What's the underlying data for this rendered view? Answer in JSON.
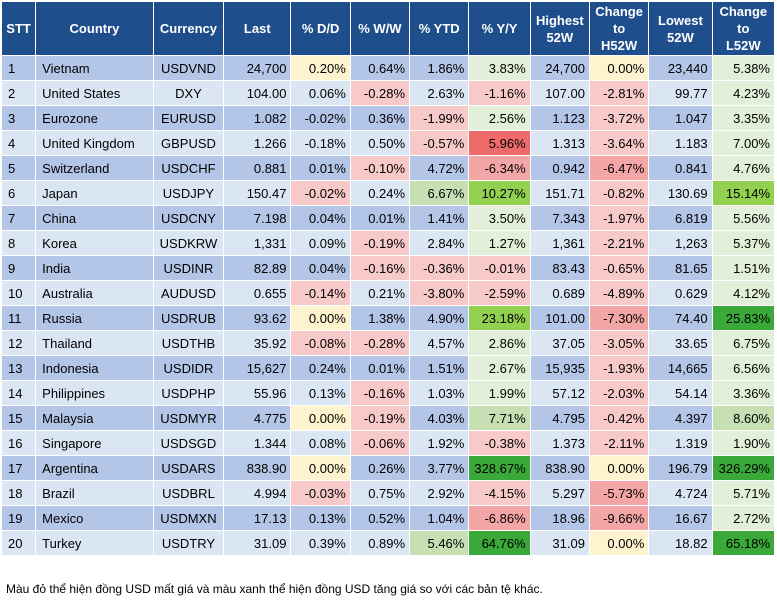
{
  "headers": {
    "stt": "STT",
    "country": "Country",
    "currency": "Currency",
    "last": "Last",
    "dd": "% D/D",
    "ww": "% W/W",
    "ytd": "% YTD",
    "yy": "% Y/Y",
    "high1": "Highest",
    "high2": "52W",
    "ch1": "Change",
    "ch2": "to",
    "ch3": "H52W",
    "low1": "Lowest",
    "low2": "52W",
    "cl1": "Change",
    "cl2": "to",
    "cl3": "L52W"
  },
  "rows": [
    {
      "stt": "1",
      "country": "Vietnam",
      "currency": "USDVND",
      "last": "24,700",
      "dd": "0.20%",
      "ww": "0.64%",
      "ytd": "1.86%",
      "yy": "3.83%",
      "high": "24,700",
      "ch": "0.00%",
      "low": "23,440",
      "cl": "5.38%"
    },
    {
      "stt": "2",
      "country": "United States",
      "currency": "DXY",
      "last": "104.00",
      "dd": "0.06%",
      "ww": "-0.28%",
      "ytd": "2.63%",
      "yy": "-1.16%",
      "high": "107.00",
      "ch": "-2.81%",
      "low": "99.77",
      "cl": "4.23%"
    },
    {
      "stt": "3",
      "country": "Eurozone",
      "currency": "EURUSD",
      "last": "1.082",
      "dd": "-0.02%",
      "ww": "0.36%",
      "ytd": "-1.99%",
      "yy": "2.56%",
      "high": "1.123",
      "ch": "-3.72%",
      "low": "1.047",
      "cl": "3.35%"
    },
    {
      "stt": "4",
      "country": "United Kingdom",
      "currency": "GBPUSD",
      "last": "1.266",
      "dd": "-0.18%",
      "ww": "0.50%",
      "ytd": "-0.57%",
      "yy": "5.96%",
      "high": "1.313",
      "ch": "-3.64%",
      "low": "1.183",
      "cl": "7.00%"
    },
    {
      "stt": "5",
      "country": "Switzerland",
      "currency": "USDCHF",
      "last": "0.881",
      "dd": "0.01%",
      "ww": "-0.10%",
      "ytd": "4.72%",
      "yy": "-6.34%",
      "high": "0.942",
      "ch": "-6.47%",
      "low": "0.841",
      "cl": "4.76%"
    },
    {
      "stt": "6",
      "country": "Japan",
      "currency": "USDJPY",
      "last": "150.47",
      "dd": "-0.02%",
      "ww": "0.24%",
      "ytd": "6.67%",
      "yy": "10.27%",
      "high": "151.71",
      "ch": "-0.82%",
      "low": "130.69",
      "cl": "15.14%"
    },
    {
      "stt": "7",
      "country": "China",
      "currency": "USDCNY",
      "last": "7.198",
      "dd": "0.04%",
      "ww": "0.01%",
      "ytd": "1.41%",
      "yy": "3.50%",
      "high": "7.343",
      "ch": "-1.97%",
      "low": "6.819",
      "cl": "5.56%"
    },
    {
      "stt": "8",
      "country": "Korea",
      "currency": "USDKRW",
      "last": "1,331",
      "dd": "0.09%",
      "ww": "-0.19%",
      "ytd": "2.84%",
      "yy": "1.27%",
      "high": "1,361",
      "ch": "-2.21%",
      "low": "1,263",
      "cl": "5.37%"
    },
    {
      "stt": "9",
      "country": "India",
      "currency": "USDINR",
      "last": "82.89",
      "dd": "0.04%",
      "ww": "-0.16%",
      "ytd": "-0.36%",
      "yy": "-0.01%",
      "high": "83.43",
      "ch": "-0.65%",
      "low": "81.65",
      "cl": "1.51%"
    },
    {
      "stt": "10",
      "country": "Australia",
      "currency": "AUDUSD",
      "last": "0.655",
      "dd": "-0.14%",
      "ww": "0.21%",
      "ytd": "-3.80%",
      "yy": "-2.59%",
      "high": "0.689",
      "ch": "-4.89%",
      "low": "0.629",
      "cl": "4.12%"
    },
    {
      "stt": "11",
      "country": "Russia",
      "currency": "USDRUB",
      "last": "93.62",
      "dd": "0.00%",
      "ww": "1.38%",
      "ytd": "4.90%",
      "yy": "23.18%",
      "high": "101.00",
      "ch": "-7.30%",
      "low": "74.40",
      "cl": "25.83%"
    },
    {
      "stt": "12",
      "country": "Thailand",
      "currency": "USDTHB",
      "last": "35.92",
      "dd": "-0.08%",
      "ww": "-0.28%",
      "ytd": "4.57%",
      "yy": "2.86%",
      "high": "37.05",
      "ch": "-3.05%",
      "low": "33.65",
      "cl": "6.75%"
    },
    {
      "stt": "13",
      "country": "Indonesia",
      "currency": "USDIDR",
      "last": "15,627",
      "dd": "0.24%",
      "ww": "0.01%",
      "ytd": "1.51%",
      "yy": "2.67%",
      "high": "15,935",
      "ch": "-1.93%",
      "low": "14,665",
      "cl": "6.56%"
    },
    {
      "stt": "14",
      "country": "Philippines",
      "currency": "USDPHP",
      "last": "55.96",
      "dd": "0.13%",
      "ww": "-0.16%",
      "ytd": "1.03%",
      "yy": "1.99%",
      "high": "57.12",
      "ch": "-2.03%",
      "low": "54.14",
      "cl": "3.36%"
    },
    {
      "stt": "15",
      "country": "Malaysia",
      "currency": "USDMYR",
      "last": "4.775",
      "dd": "0.00%",
      "ww": "-0.19%",
      "ytd": "4.03%",
      "yy": "7.71%",
      "high": "4.795",
      "ch": "-0.42%",
      "low": "4.397",
      "cl": "8.60%"
    },
    {
      "stt": "16",
      "country": "Singapore",
      "currency": "USDSGD",
      "last": "1.344",
      "dd": "0.08%",
      "ww": "-0.06%",
      "ytd": "1.92%",
      "yy": "-0.38%",
      "high": "1.373",
      "ch": "-2.11%",
      "low": "1.319",
      "cl": "1.90%"
    },
    {
      "stt": "17",
      "country": "Argentina",
      "currency": "USDARS",
      "last": "838.90",
      "dd": "0.00%",
      "ww": "0.26%",
      "ytd": "3.77%",
      "yy": "328.67%",
      "high": "838.90",
      "ch": "0.00%",
      "low": "196.79",
      "cl": "326.29%"
    },
    {
      "stt": "18",
      "country": "Brazil",
      "currency": "USDBRL",
      "last": "4.994",
      "dd": "-0.03%",
      "ww": "0.75%",
      "ytd": "2.92%",
      "yy": "-4.15%",
      "high": "5.297",
      "ch": "-5.73%",
      "low": "4.724",
      "cl": "5.71%"
    },
    {
      "stt": "19",
      "country": "Mexico",
      "currency": "USDMXN",
      "last": "17.13",
      "dd": "0.13%",
      "ww": "0.52%",
      "ytd": "1.04%",
      "yy": "-6.86%",
      "high": "18.96",
      "ch": "-9.66%",
      "low": "16.67",
      "cl": "2.72%"
    },
    {
      "stt": "20",
      "country": "Turkey",
      "currency": "USDTRY",
      "last": "31.09",
      "dd": "0.39%",
      "ww": "0.89%",
      "ytd": "5.46%",
      "yy": "64.76%",
      "high": "31.09",
      "ch": "0.00%",
      "low": "18.82",
      "cl": "65.18%"
    }
  ],
  "footnote": "Màu đỏ thể hiện đồng USD mất giá và màu xanh thể hiện đồng USD tăng giá so với các bản tệ khác.",
  "colors": {
    "header_bg": "#1f4e8c",
    "row_odd": "#b4c6e7",
    "row_even": "#dbe6f4",
    "neutral": "#fdf3ce",
    "green_light": "#e2f0d9",
    "green_mid": "#c6e0b4",
    "green_dark": "#92d050",
    "green_strong": "#3aa93a",
    "red_light": "#f8c9c9",
    "red_mid": "#f4a6a6",
    "red_strong": "#ef6b6b"
  }
}
